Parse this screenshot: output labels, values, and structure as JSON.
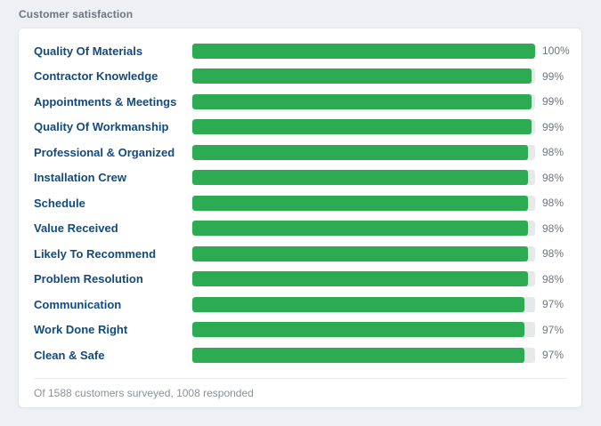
{
  "page": {
    "title": "Customer satisfaction",
    "background_color": "#eef0f4",
    "card_color": "#ffffff"
  },
  "chart_data": {
    "type": "bar",
    "orientation": "horizontal",
    "title": "Customer satisfaction",
    "categories": [
      "Quality Of Materials",
      "Contractor Knowledge",
      "Appointments & Meetings",
      "Quality Of Workmanship",
      "Professional & Organized",
      "Installation Crew",
      "Schedule",
      "Value Received",
      "Likely To Recommend",
      "Problem Resolution",
      "Communication",
      "Work Done Right",
      "Clean & Safe"
    ],
    "values": [
      100,
      99,
      99,
      99,
      98,
      98,
      98,
      98,
      98,
      98,
      97,
      97,
      97
    ],
    "value_suffix": "%",
    "xlim": [
      0,
      100
    ],
    "grid": false,
    "legend": "none",
    "bar_color": "#2dab53",
    "track_color": "#e6e8ea",
    "category_label_color": "#134a7e",
    "value_label_color": "#6e757e"
  },
  "footer": {
    "note": "Of 1588 customers surveyed, 1008 responded"
  }
}
